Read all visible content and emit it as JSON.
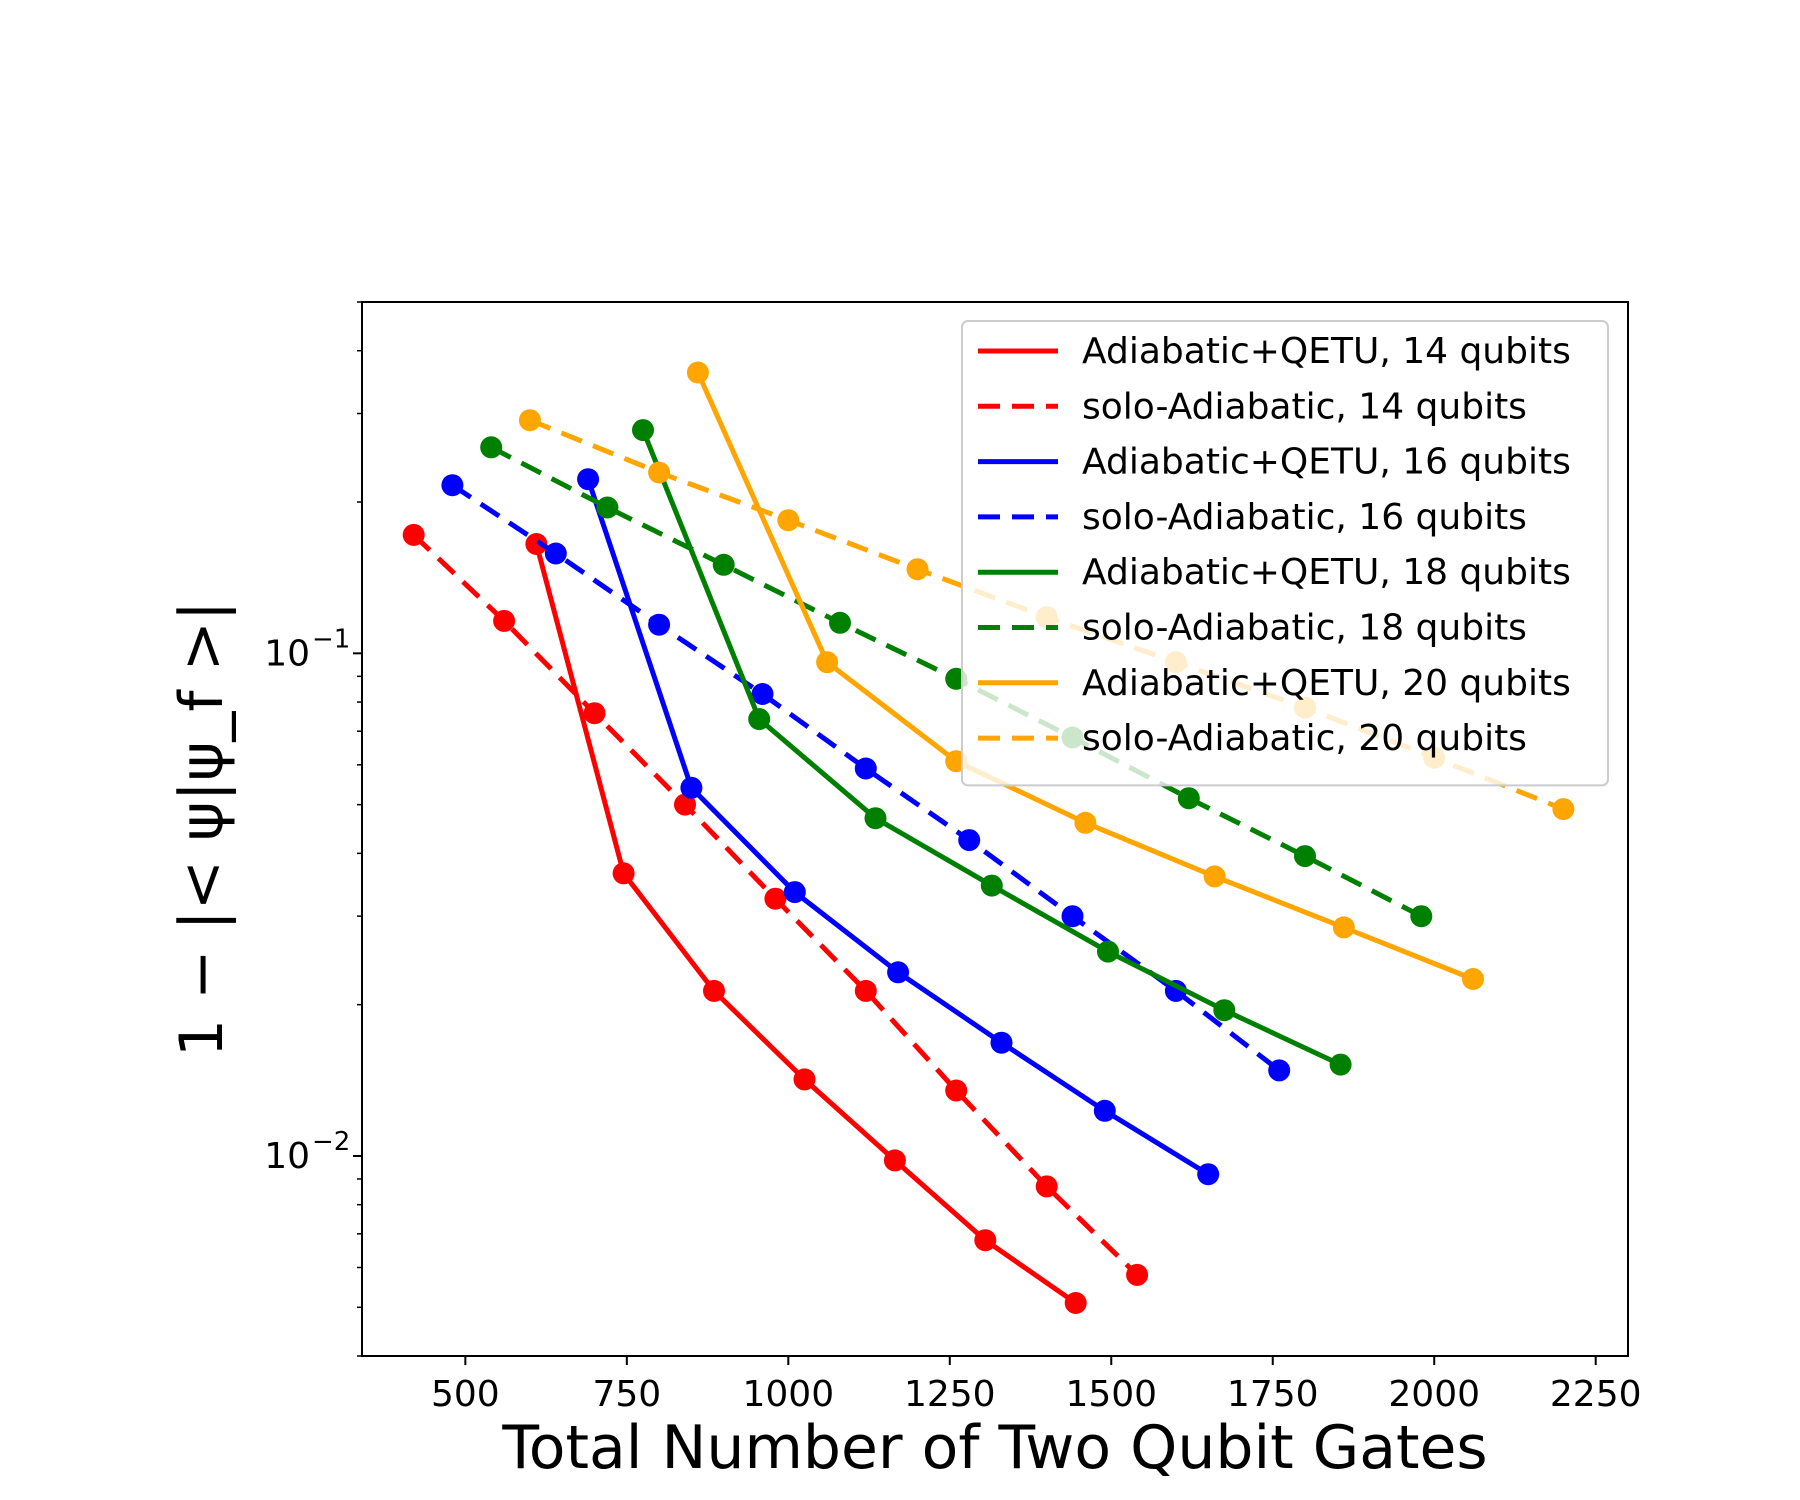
{
  "chart_data": {
    "type": "line",
    "title": "",
    "xlabel": "Total Number of Two Qubit Gates",
    "ylabel": "1 − |< ψ|ψ_f >|",
    "y_scale": "log",
    "xlim": [
      340,
      2300
    ],
    "ylim": [
      0.004,
      0.5
    ],
    "x_ticks": [
      500,
      750,
      1000,
      1250,
      1500,
      1750,
      2000,
      2250
    ],
    "y_ticks": [
      {
        "value": 0.1,
        "base": "10",
        "exp": "−1"
      },
      {
        "value": 0.01,
        "base": "10",
        "exp": "−2"
      }
    ],
    "legend_position": "upper-right",
    "series": [
      {
        "name": "Adiabatic+QETU, 14 qubits",
        "color": "#ff0000",
        "style": "solid",
        "x": [
          610,
          745,
          885,
          1025,
          1165,
          1305,
          1445
        ],
        "y": [
          0.165,
          0.0365,
          0.0213,
          0.0142,
          0.0098,
          0.0068,
          0.0051
        ]
      },
      {
        "name": "solo-Adiabatic, 14 qubits",
        "color": "#ff0000",
        "style": "dashed",
        "x": [
          420,
          560,
          700,
          840,
          980,
          1120,
          1260,
          1400,
          1540
        ],
        "y": [
          0.172,
          0.116,
          0.076,
          0.05,
          0.0325,
          0.0213,
          0.0135,
          0.0087,
          0.0058
        ]
      },
      {
        "name": "Adiabatic+QETU, 16 qubits",
        "color": "#0000ff",
        "style": "solid",
        "x": [
          690,
          850,
          1010,
          1170,
          1330,
          1490,
          1650
        ],
        "y": [
          0.222,
          0.054,
          0.0335,
          0.0232,
          0.0168,
          0.0123,
          0.0092
        ]
      },
      {
        "name": "solo-Adiabatic, 16 qubits",
        "color": "#0000ff",
        "style": "dashed",
        "x": [
          480,
          640,
          800,
          960,
          1120,
          1280,
          1440,
          1600,
          1760
        ],
        "y": [
          0.216,
          0.158,
          0.114,
          0.083,
          0.059,
          0.0425,
          0.03,
          0.0213,
          0.0148
        ]
      },
      {
        "name": "Adiabatic+QETU, 18 qubits",
        "color": "#008000",
        "style": "solid",
        "x": [
          775,
          955,
          1135,
          1315,
          1495,
          1675,
          1855
        ],
        "y": [
          0.278,
          0.074,
          0.047,
          0.0345,
          0.0255,
          0.0195,
          0.0152
        ]
      },
      {
        "name": "solo-Adiabatic, 18 qubits",
        "color": "#008000",
        "style": "dashed",
        "x": [
          540,
          720,
          900,
          1080,
          1260,
          1440,
          1620,
          1800,
          1980
        ],
        "y": [
          0.257,
          0.195,
          0.15,
          0.115,
          0.089,
          0.068,
          0.0515,
          0.0395,
          0.03
        ]
      },
      {
        "name": "Adiabatic+QETU, 20 qubits",
        "color": "#ffa500",
        "style": "solid",
        "x": [
          860,
          1060,
          1260,
          1460,
          1660,
          1860,
          2060
        ],
        "y": [
          0.362,
          0.096,
          0.061,
          0.046,
          0.036,
          0.0285,
          0.0225
        ]
      },
      {
        "name": "solo-Adiabatic, 20 qubits",
        "color": "#ffa500",
        "style": "dashed",
        "x": [
          600,
          800,
          1000,
          1200,
          1400,
          1600,
          1800,
          2000,
          2200
        ],
        "y": [
          0.291,
          0.229,
          0.184,
          0.147,
          0.118,
          0.096,
          0.078,
          0.062,
          0.049
        ]
      }
    ]
  }
}
